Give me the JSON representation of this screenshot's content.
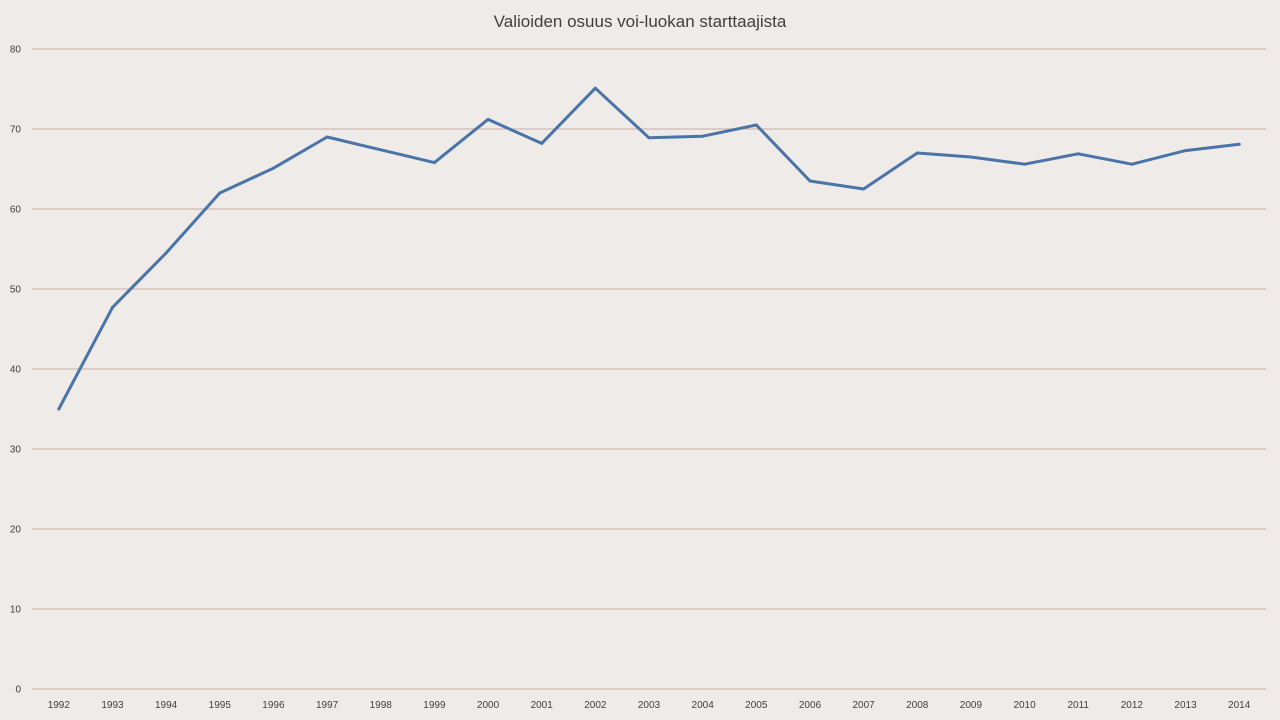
{
  "chart_data": {
    "type": "line",
    "title": "Valioiden osuus voi-luokan starttaajista",
    "xlabel": "",
    "ylabel": "",
    "ylim": [
      0,
      80
    ],
    "yticks": [
      0,
      10,
      20,
      30,
      40,
      50,
      60,
      70,
      80
    ],
    "grid": true,
    "legend": "none",
    "categories": [
      "1992",
      "1993",
      "1994",
      "1995",
      "1996",
      "1997",
      "1998",
      "1999",
      "2000",
      "2001",
      "2002",
      "2003",
      "2004",
      "2005",
      "2006",
      "2007",
      "2008",
      "2009",
      "2010",
      "2011",
      "2012",
      "2013",
      "2014"
    ],
    "series": [
      {
        "color": "#4a74a8",
        "values": [
          35,
          47.7,
          54.5,
          62,
          65.1,
          69,
          67.4,
          65.8,
          71.2,
          68.2,
          75.1,
          68.9,
          69.1,
          70.5,
          63.5,
          62.5,
          67,
          66.5,
          65.6,
          66.9,
          65.6,
          67.3,
          68.1
        ]
      }
    ]
  }
}
